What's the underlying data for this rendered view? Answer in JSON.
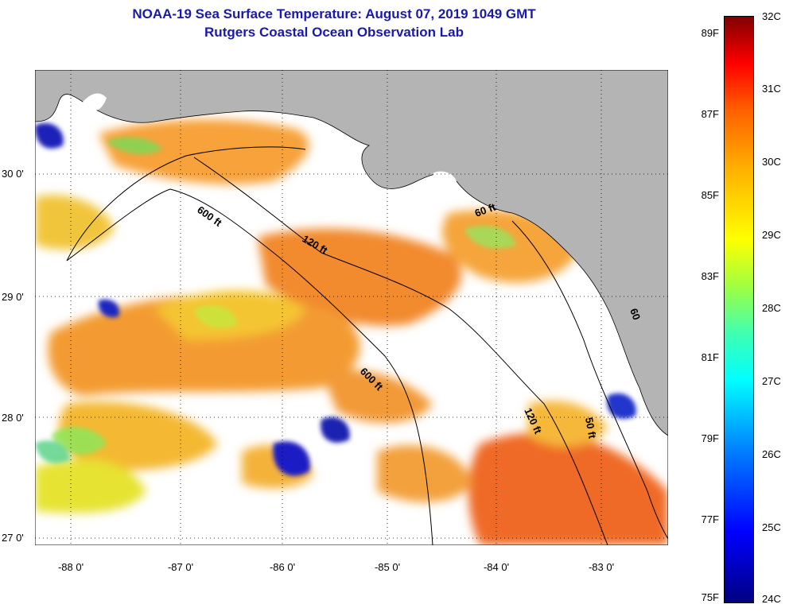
{
  "title": {
    "line1": "NOAA-19 Sea Surface Temperature:  August 07, 2019 1049 GMT",
    "line2": "Rutgers Coastal Ocean Observation Lab"
  },
  "map": {
    "lat_labels": [
      "30 0'",
      "29 0'",
      "28 0'",
      "27 0'"
    ],
    "lon_labels": [
      "-88 0'",
      "-87 0'",
      "-86 0'",
      "-85 0'",
      "-84 0'",
      "-83 0'"
    ],
    "contours": [
      "600 ft",
      "120 ft",
      "600 ft",
      "60 ft",
      "120 ft",
      "50 ft",
      "60"
    ],
    "colors": {
      "land": "#b4b4b4",
      "cloud": "#ffffff"
    }
  },
  "colorbar": {
    "fahrenheit": [
      "89F",
      "87F",
      "85F",
      "83F",
      "81F",
      "79F",
      "77F",
      "75F"
    ],
    "celsius": [
      "32C",
      "31C",
      "30C",
      "29C",
      "28C",
      "27C",
      "26C",
      "25C",
      "24C"
    ]
  }
}
